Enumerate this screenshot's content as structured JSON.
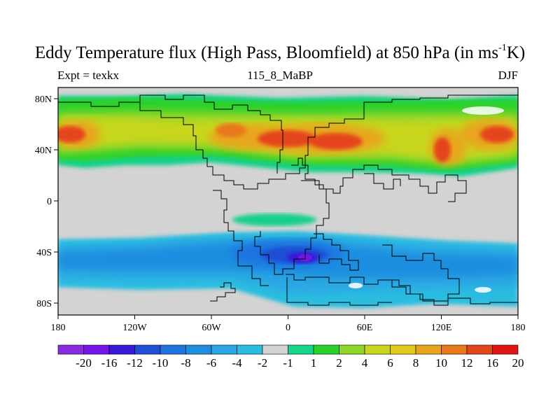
{
  "title": {
    "main": "Eddy Temperature flux (High Pass, Bloomfield) at 850 hPa (in ms",
    "superscript": "-1",
    "tail": "K)"
  },
  "subtitles": {
    "left": "Expt = texkx",
    "center": "115_8_MaBP",
    "right": "DJF"
  },
  "map": {
    "projection": "cylindrical equidistant",
    "lon_ticks": [
      "180",
      "120W",
      "60W",
      "0",
      "60E",
      "120E",
      "180"
    ],
    "lat_ticks": [
      "80N",
      "40N",
      "0",
      "40S",
      "80S"
    ],
    "missing_color": "#d3d3d3"
  },
  "colorbar": {
    "labels": [
      "-20",
      "-16",
      "-12",
      "-10",
      "-8",
      "-6",
      "-4",
      "-2",
      "-1",
      "1",
      "2",
      "4",
      "6",
      "8",
      "10",
      "12",
      "16",
      "20"
    ],
    "colors": [
      "#8a2be2",
      "#7316e6",
      "#3a18d9",
      "#1f4fd6",
      "#1f74e0",
      "#1f8ee0",
      "#2aa7e3",
      "#29bde0",
      "#d3d3d3",
      "#17d68a",
      "#2ad12a",
      "#8ed629",
      "#c8d61f",
      "#e0c81c",
      "#e8a51c",
      "#e8781c",
      "#e5451a",
      "#e01414"
    ]
  }
}
